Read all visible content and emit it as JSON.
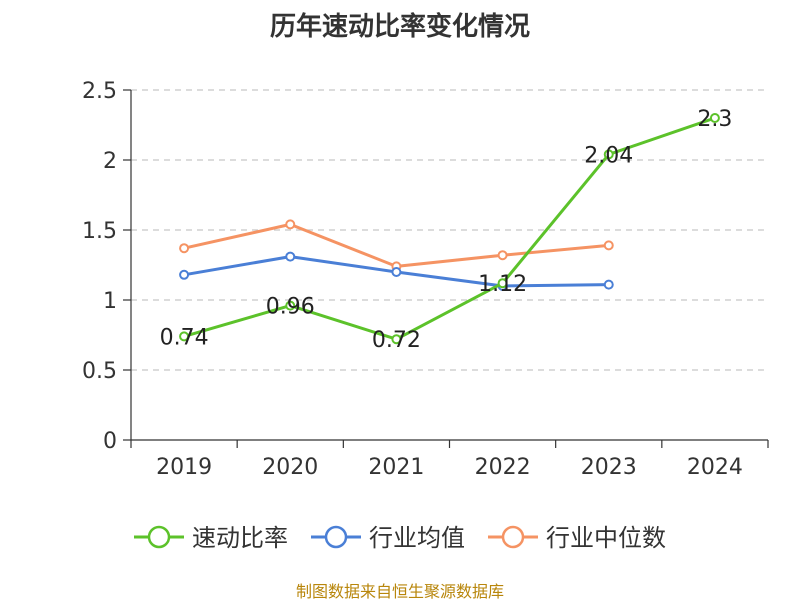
{
  "chart_data": {
    "type": "line",
    "title": "历年速动比率变化情况",
    "categories": [
      "2019",
      "2020",
      "2021",
      "2022",
      "2023",
      "2024"
    ],
    "ylim": [
      0,
      2.5
    ],
    "yticks": [
      "0",
      "0.5",
      "1",
      "1.5",
      "2",
      "2.5"
    ],
    "grid": true,
    "legend_position": "bottom",
    "series": [
      {
        "name": "速动比率",
        "color": "#5cc22a",
        "values": [
          0.74,
          0.96,
          0.72,
          1.12,
          2.04,
          2.3
        ],
        "labels": [
          "0.74",
          "0.96",
          "0.72",
          "1.12",
          "2.04",
          "2.3"
        ]
      },
      {
        "name": "行业均值",
        "color": "#4a7fd6",
        "values": [
          1.18,
          1.31,
          1.2,
          1.1,
          1.11,
          null
        ]
      },
      {
        "name": "行业中位数",
        "color": "#f59363",
        "values": [
          1.37,
          1.54,
          1.24,
          1.32,
          1.39,
          null
        ]
      }
    ]
  },
  "source_note": "制图数据来自恒生聚源数据库"
}
